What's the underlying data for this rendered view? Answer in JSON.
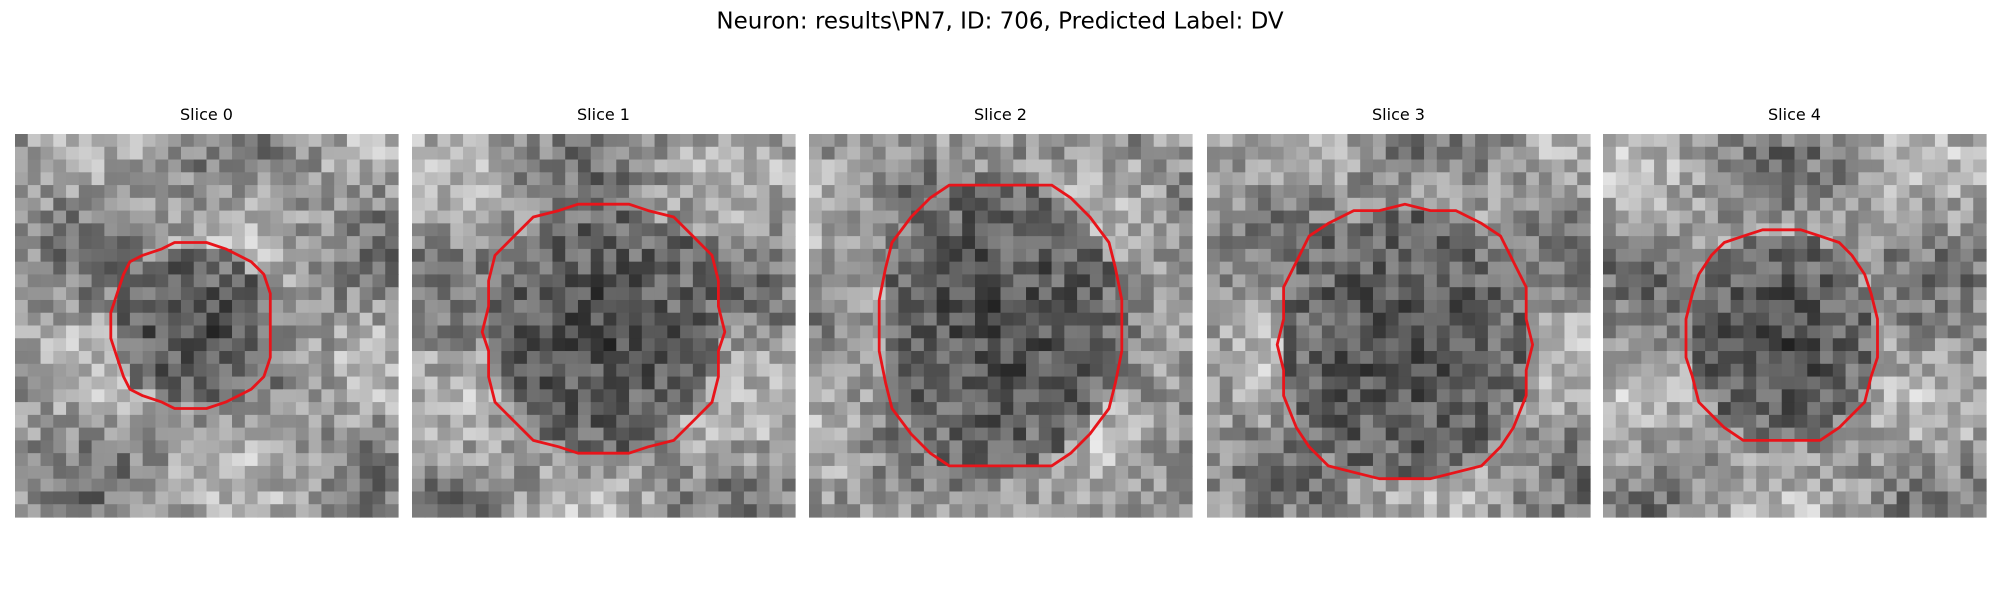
{
  "title": "Neuron: results\\PN7, ID: 706, Predicted Label: DV",
  "panels": [
    {
      "title": "Slice 0"
    },
    {
      "title": "Slice 1"
    },
    {
      "title": "Slice 2"
    },
    {
      "title": "Slice 3"
    },
    {
      "title": "Slice 4"
    }
  ]
}
